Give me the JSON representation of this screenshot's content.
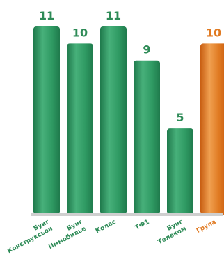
{
  "chart_data": {
    "type": "bar",
    "categories": [
      [
        "Буиг",
        "Конструксьон"
      ],
      [
        "Буиг",
        "Иммобилье"
      ],
      [
        "Колас"
      ],
      [
        "ТФ1"
      ],
      [
        "Буиг",
        "Телеком"
      ],
      [
        "Група"
      ]
    ],
    "values": [
      11,
      10,
      11,
      9,
      5,
      10
    ],
    "colors": [
      "green",
      "green",
      "green",
      "green",
      "green",
      "orange"
    ],
    "palette": {
      "green_dark": "#1f7a4c",
      "green_mid": "#2f9a63",
      "green_light": "#47b07a",
      "orange_dark": "#c85e12",
      "orange_mid": "#e07a22",
      "orange_light": "#f0a050",
      "label_green": "#2e8b57",
      "label_orange": "#e07a22",
      "baseline": "#cfcfcf"
    },
    "title": "",
    "xlabel": "",
    "ylabel": "",
    "ylim": [
      0,
      11
    ],
    "grid": false,
    "legend": "none"
  }
}
